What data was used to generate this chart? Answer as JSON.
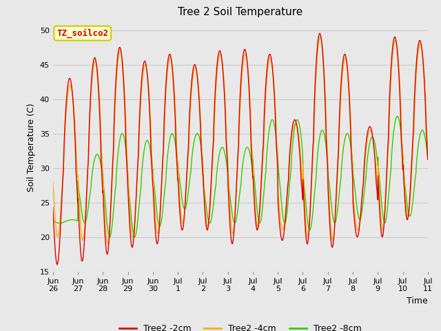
{
  "title": "Tree 2 Soil Temperature",
  "xlabel": "Time",
  "ylabel": "Soil Temperature (C)",
  "ylim": [
    15,
    51
  ],
  "yticks": [
    15,
    20,
    25,
    30,
    35,
    40,
    45,
    50
  ],
  "annotation_text": "TZ_soilco2",
  "annotation_color": "#cc0000",
  "annotation_bg": "#ffffcc",
  "annotation_border": "#cccc00",
  "fig_bg": "#e8e8e8",
  "plot_bg": "#e8e8e8",
  "line_colors": {
    "2cm": "#dd0000",
    "4cm": "#ffaa00",
    "8cm": "#33cc00"
  },
  "legend_labels": [
    "Tree2 -2cm",
    "Tree2 -4cm",
    "Tree2 -8cm"
  ],
  "xtick_labels": [
    "Jun 26",
    "Jun 27",
    "Jun 28",
    "Jun 29",
    "Jun 30",
    "Jul 1",
    "Jul 2",
    "Jul 3",
    "Jul 4",
    "Jul 5",
    "Jul 6",
    "Jul 7",
    "Jul 8",
    "Jul 9",
    "Jul 10",
    "Jul 11"
  ],
  "num_days": 16,
  "title_fontsize": 11,
  "axis_label_fontsize": 9,
  "tick_fontsize": 8,
  "peaks_2cm": [
    43,
    46,
    47.5,
    45.5,
    46.5,
    45,
    47,
    47.2,
    46.5,
    37,
    49.5,
    46.5,
    36,
    49,
    48.5
  ],
  "troughs_2cm": [
    16,
    16.5,
    17.5,
    18.5,
    19,
    21,
    21,
    19,
    21,
    19.5,
    19,
    18.5,
    20,
    20,
    22.5
  ],
  "peaks_4cm": [
    42,
    45.5,
    47,
    45,
    46,
    44.5,
    46.5,
    46.5,
    46,
    36.5,
    49,
    46,
    35.5,
    48.5,
    48
  ],
  "troughs_4cm": [
    20,
    19.5,
    19,
    20,
    20.5,
    22,
    21.5,
    20.5,
    21.5,
    21,
    20,
    19.5,
    21,
    21,
    23
  ],
  "peaks_8cm": [
    22.5,
    32,
    35,
    34,
    35,
    35,
    33,
    33,
    37,
    37,
    35.5,
    35,
    34.5,
    37.5,
    35.5
  ],
  "troughs_8cm": [
    22,
    22,
    20,
    20,
    21.5,
    24,
    22,
    22,
    22,
    22,
    21,
    22,
    22.5,
    22,
    23
  ],
  "peak_phase_2cm": 0.42,
  "peak_phase_4cm": 0.44,
  "peak_phase_8cm": 0.52
}
